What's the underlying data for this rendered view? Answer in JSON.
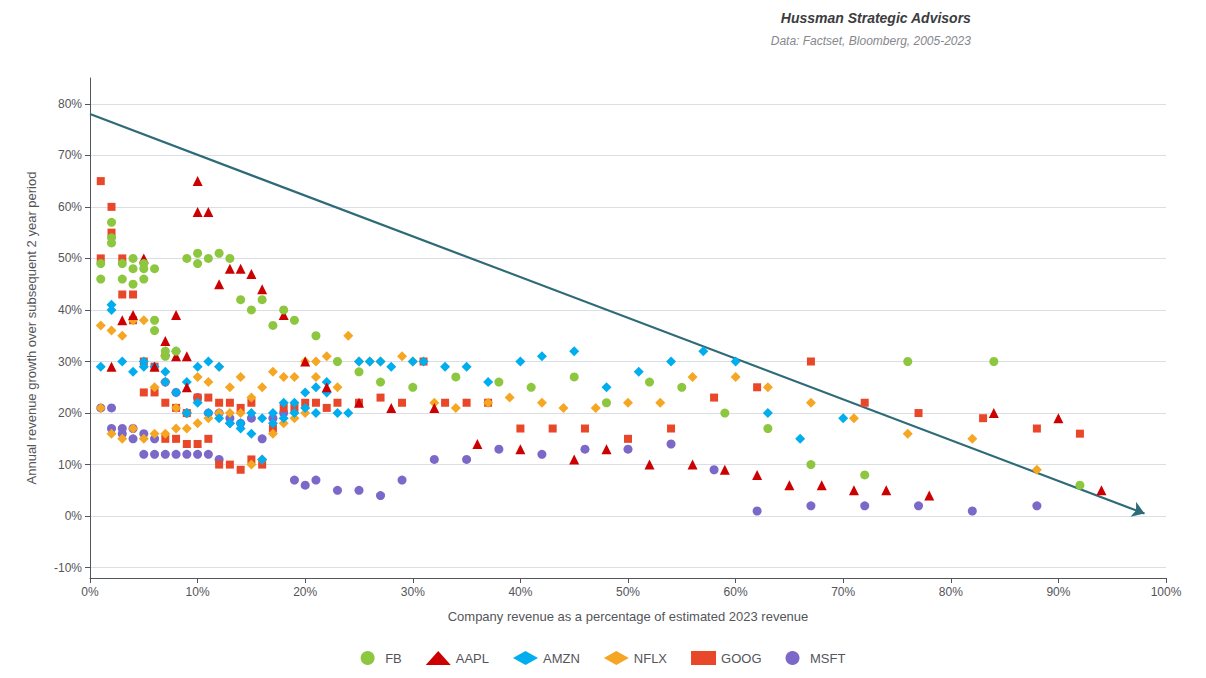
{
  "chart_data": {
    "type": "scatter",
    "title": "Hussman Strategic Advisors",
    "subtitle": "Data: Factset, Bloomberg, 2005-2023",
    "xlabel": "Company revenue as a percentage of estimated 2023 revenue",
    "ylabel": "Annual revenue growth over subsequent 2 year period",
    "xlim": [
      0,
      1.0
    ],
    "ylim": [
      -0.12,
      0.85
    ],
    "xticks": [
      {
        "value": 0.0,
        "label": "0%"
      },
      {
        "value": 0.1,
        "label": "10%"
      },
      {
        "value": 0.2,
        "label": "20%"
      },
      {
        "value": 0.3,
        "label": "30%"
      },
      {
        "value": 0.4,
        "label": "40%"
      },
      {
        "value": 0.5,
        "label": "50%"
      },
      {
        "value": 0.6,
        "label": "60%"
      },
      {
        "value": 0.7,
        "label": "70%"
      },
      {
        "value": 0.8,
        "label": "80%"
      },
      {
        "value": 0.9,
        "label": "90%"
      },
      {
        "value": 1.0,
        "label": "100%"
      }
    ],
    "yticks": [
      {
        "value": -0.1,
        "label": "-10%"
      },
      {
        "value": 0.0,
        "label": "0%"
      },
      {
        "value": 0.1,
        "label": "10%"
      },
      {
        "value": 0.2,
        "label": "20%"
      },
      {
        "value": 0.3,
        "label": "30%"
      },
      {
        "value": 0.4,
        "label": "40%"
      },
      {
        "value": 0.5,
        "label": "50%"
      },
      {
        "value": 0.6,
        "label": "60%"
      },
      {
        "value": 0.7,
        "label": "70%"
      },
      {
        "value": 0.8,
        "label": "80%"
      }
    ],
    "grid": "y",
    "legend": "bottom",
    "arrow": {
      "from": [
        0.0,
        0.78
      ],
      "to": [
        0.98,
        0.005
      ],
      "color": "#2e6b78"
    },
    "series": [
      {
        "name": "FB",
        "color": "#8dc63f",
        "marker": "circle",
        "x": [
          0.01,
          0.01,
          0.02,
          0.02,
          0.02,
          0.03,
          0.03,
          0.04,
          0.04,
          0.04,
          0.05,
          0.05,
          0.05,
          0.06,
          0.06,
          0.06,
          0.07,
          0.07,
          0.08,
          0.09,
          0.1,
          0.1,
          0.11,
          0.12,
          0.13,
          0.14,
          0.15,
          0.16,
          0.17,
          0.18,
          0.19,
          0.21,
          0.23,
          0.25,
          0.27,
          0.3,
          0.34,
          0.38,
          0.41,
          0.45,
          0.48,
          0.52,
          0.55,
          0.59,
          0.63,
          0.67,
          0.72,
          0.76,
          0.84,
          0.92
        ],
        "y": [
          0.46,
          0.49,
          0.57,
          0.54,
          0.53,
          0.49,
          0.46,
          0.5,
          0.48,
          0.45,
          0.49,
          0.48,
          0.46,
          0.48,
          0.38,
          0.36,
          0.31,
          0.32,
          0.32,
          0.5,
          0.51,
          0.49,
          0.5,
          0.51,
          0.5,
          0.42,
          0.4,
          0.42,
          0.37,
          0.4,
          0.38,
          0.35,
          0.3,
          0.28,
          0.26,
          0.25,
          0.27,
          0.26,
          0.25,
          0.27,
          0.22,
          0.26,
          0.25,
          0.2,
          0.17,
          0.1,
          0.08,
          0.3,
          0.3,
          0.06
        ]
      },
      {
        "name": "AAPL",
        "color": "#cc0000",
        "marker": "triangle",
        "x": [
          0.02,
          0.03,
          0.04,
          0.05,
          0.06,
          0.07,
          0.07,
          0.08,
          0.08,
          0.09,
          0.09,
          0.1,
          0.1,
          0.11,
          0.12,
          0.13,
          0.14,
          0.15,
          0.16,
          0.18,
          0.2,
          0.22,
          0.25,
          0.28,
          0.32,
          0.36,
          0.4,
          0.45,
          0.48,
          0.52,
          0.56,
          0.59,
          0.62,
          0.65,
          0.68,
          0.71,
          0.74,
          0.78,
          0.84,
          0.9,
          0.94
        ],
        "y": [
          0.29,
          0.38,
          0.39,
          0.5,
          0.29,
          0.34,
          0.32,
          0.31,
          0.39,
          0.25,
          0.31,
          0.65,
          0.59,
          0.59,
          0.45,
          0.48,
          0.48,
          0.47,
          0.44,
          0.39,
          0.3,
          0.25,
          0.22,
          0.21,
          0.21,
          0.14,
          0.13,
          0.11,
          0.13,
          0.1,
          0.1,
          0.09,
          0.08,
          0.06,
          0.06,
          0.05,
          0.05,
          0.04,
          0.2,
          0.19,
          0.05
        ]
      },
      {
        "name": "AMZN",
        "color": "#00adef",
        "marker": "diamond",
        "x": [
          0.01,
          0.02,
          0.02,
          0.03,
          0.04,
          0.05,
          0.05,
          0.06,
          0.07,
          0.07,
          0.08,
          0.08,
          0.09,
          0.09,
          0.1,
          0.1,
          0.11,
          0.11,
          0.12,
          0.12,
          0.13,
          0.13,
          0.14,
          0.14,
          0.15,
          0.15,
          0.16,
          0.16,
          0.17,
          0.17,
          0.18,
          0.18,
          0.19,
          0.19,
          0.2,
          0.2,
          0.21,
          0.21,
          0.22,
          0.22,
          0.23,
          0.24,
          0.25,
          0.26,
          0.27,
          0.28,
          0.3,
          0.31,
          0.33,
          0.35,
          0.37,
          0.4,
          0.42,
          0.45,
          0.48,
          0.51,
          0.54,
          0.57,
          0.6,
          0.63,
          0.66,
          0.7
        ],
        "y": [
          0.29,
          0.41,
          0.4,
          0.3,
          0.28,
          0.3,
          0.29,
          0.29,
          0.26,
          0.28,
          0.24,
          0.32,
          0.2,
          0.26,
          0.22,
          0.29,
          0.2,
          0.3,
          0.19,
          0.29,
          0.18,
          0.18,
          0.17,
          0.18,
          0.16,
          0.2,
          0.11,
          0.19,
          0.18,
          0.2,
          0.19,
          0.22,
          0.2,
          0.22,
          0.21,
          0.24,
          0.2,
          0.25,
          0.24,
          0.26,
          0.2,
          0.2,
          0.3,
          0.3,
          0.3,
          0.29,
          0.3,
          0.3,
          0.29,
          0.29,
          0.26,
          0.3,
          0.31,
          0.32,
          0.25,
          0.28,
          0.3,
          0.32,
          0.3,
          0.2,
          0.15,
          0.19
        ]
      },
      {
        "name": "NFLX",
        "color": "#f5a623",
        "marker": "diamond",
        "x": [
          0.01,
          0.01,
          0.02,
          0.02,
          0.03,
          0.03,
          0.04,
          0.04,
          0.05,
          0.05,
          0.06,
          0.06,
          0.07,
          0.07,
          0.08,
          0.08,
          0.09,
          0.09,
          0.1,
          0.1,
          0.11,
          0.11,
          0.12,
          0.12,
          0.13,
          0.13,
          0.14,
          0.14,
          0.15,
          0.15,
          0.16,
          0.16,
          0.17,
          0.17,
          0.18,
          0.18,
          0.19,
          0.19,
          0.2,
          0.2,
          0.21,
          0.21,
          0.22,
          0.23,
          0.24,
          0.25,
          0.26,
          0.27,
          0.29,
          0.3,
          0.32,
          0.34,
          0.37,
          0.39,
          0.42,
          0.44,
          0.47,
          0.5,
          0.53,
          0.56,
          0.6,
          0.63,
          0.67,
          0.71,
          0.76,
          0.82,
          0.88
        ],
        "y": [
          0.37,
          0.21,
          0.36,
          0.16,
          0.35,
          0.15,
          0.38,
          0.17,
          0.38,
          0.15,
          0.25,
          0.16,
          0.26,
          0.16,
          0.21,
          0.17,
          0.2,
          0.17,
          0.27,
          0.18,
          0.26,
          0.19,
          0.29,
          0.2,
          0.25,
          0.2,
          0.27,
          0.2,
          0.1,
          0.23,
          0.11,
          0.25,
          0.16,
          0.28,
          0.18,
          0.27,
          0.19,
          0.27,
          0.2,
          0.3,
          0.3,
          0.27,
          0.31,
          0.25,
          0.35,
          0.3,
          0.3,
          0.3,
          0.31,
          0.3,
          0.22,
          0.21,
          0.22,
          0.23,
          0.22,
          0.21,
          0.21,
          0.22,
          0.22,
          0.27,
          0.27,
          0.25,
          0.22,
          0.19,
          0.16,
          0.15,
          0.09
        ]
      },
      {
        "name": "GOOG",
        "color": "#e8472a",
        "marker": "square",
        "x": [
          0.01,
          0.01,
          0.02,
          0.02,
          0.03,
          0.03,
          0.04,
          0.04,
          0.05,
          0.05,
          0.06,
          0.06,
          0.07,
          0.07,
          0.08,
          0.08,
          0.09,
          0.09,
          0.1,
          0.1,
          0.11,
          0.11,
          0.12,
          0.12,
          0.13,
          0.13,
          0.14,
          0.14,
          0.15,
          0.15,
          0.16,
          0.17,
          0.18,
          0.19,
          0.2,
          0.21,
          0.22,
          0.23,
          0.25,
          0.27,
          0.29,
          0.31,
          0.33,
          0.35,
          0.37,
          0.4,
          0.43,
          0.46,
          0.5,
          0.54,
          0.58,
          0.62,
          0.67,
          0.72,
          0.77,
          0.83,
          0.88,
          0.92
        ],
        "y": [
          0.65,
          0.5,
          0.6,
          0.55,
          0.5,
          0.43,
          0.43,
          0.38,
          0.3,
          0.24,
          0.29,
          0.24,
          0.22,
          0.15,
          0.21,
          0.15,
          0.2,
          0.14,
          0.14,
          0.23,
          0.15,
          0.23,
          0.1,
          0.22,
          0.1,
          0.22,
          0.09,
          0.21,
          0.11,
          0.22,
          0.1,
          0.17,
          0.21,
          0.21,
          0.22,
          0.22,
          0.21,
          0.22,
          0.22,
          0.23,
          0.22,
          0.3,
          0.22,
          0.22,
          0.22,
          0.17,
          0.17,
          0.17,
          0.15,
          0.17,
          0.23,
          0.25,
          0.3,
          0.22,
          0.2,
          0.19,
          0.17,
          0.16
        ]
      },
      {
        "name": "MSFT",
        "color": "#7b68c8",
        "marker": "circle",
        "x": [
          0.01,
          0.02,
          0.02,
          0.03,
          0.03,
          0.04,
          0.04,
          0.05,
          0.05,
          0.06,
          0.06,
          0.07,
          0.07,
          0.08,
          0.08,
          0.09,
          0.09,
          0.1,
          0.1,
          0.11,
          0.11,
          0.12,
          0.12,
          0.13,
          0.14,
          0.15,
          0.16,
          0.17,
          0.18,
          0.19,
          0.2,
          0.21,
          0.23,
          0.25,
          0.27,
          0.29,
          0.32,
          0.35,
          0.38,
          0.42,
          0.46,
          0.5,
          0.54,
          0.58,
          0.62,
          0.67,
          0.72,
          0.77,
          0.82,
          0.88
        ],
        "y": [
          0.21,
          0.21,
          0.17,
          0.16,
          0.17,
          0.17,
          0.15,
          0.16,
          0.12,
          0.15,
          0.12,
          0.26,
          0.12,
          0.24,
          0.12,
          0.2,
          0.12,
          0.23,
          0.12,
          0.2,
          0.12,
          0.2,
          0.11,
          0.19,
          0.18,
          0.19,
          0.15,
          0.19,
          0.2,
          0.07,
          0.06,
          0.07,
          0.05,
          0.05,
          0.04,
          0.07,
          0.11,
          0.11,
          0.13,
          0.12,
          0.13,
          0.13,
          0.14,
          0.09,
          0.01,
          0.02,
          0.02,
          0.02,
          0.01,
          0.02
        ]
      }
    ]
  }
}
